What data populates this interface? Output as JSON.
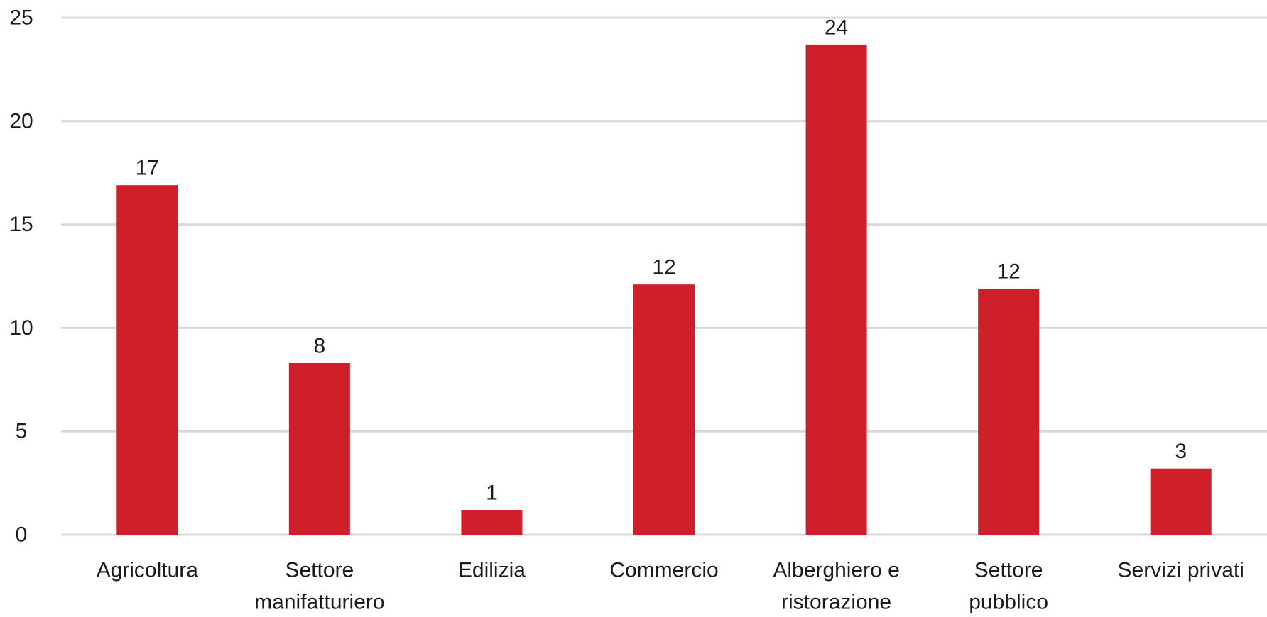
{
  "chart_data": {
    "type": "bar",
    "categories": [
      [
        "Agricoltura"
      ],
      [
        "Settore",
        "manifatturiero"
      ],
      [
        "Edilizia"
      ],
      [
        "Commercio"
      ],
      [
        "Alberghiero e",
        "ristorazione"
      ],
      [
        "Settore",
        "pubblico"
      ],
      [
        "Servizi privati"
      ]
    ],
    "values": [
      16.9,
      8.3,
      1.2,
      12.1,
      23.7,
      11.9,
      3.2
    ],
    "data_labels": [
      "17",
      "8",
      "1",
      "12",
      "24",
      "12",
      "3"
    ],
    "ylim": [
      0,
      25
    ],
    "yticks": [
      0,
      5,
      10,
      15,
      20,
      25
    ],
    "grid": true,
    "title": "",
    "xlabel": "",
    "ylabel": "",
    "colors": {
      "bar": "#cf1f2a",
      "grid": "#d9d9d9",
      "text": "#1a1a1a"
    }
  }
}
